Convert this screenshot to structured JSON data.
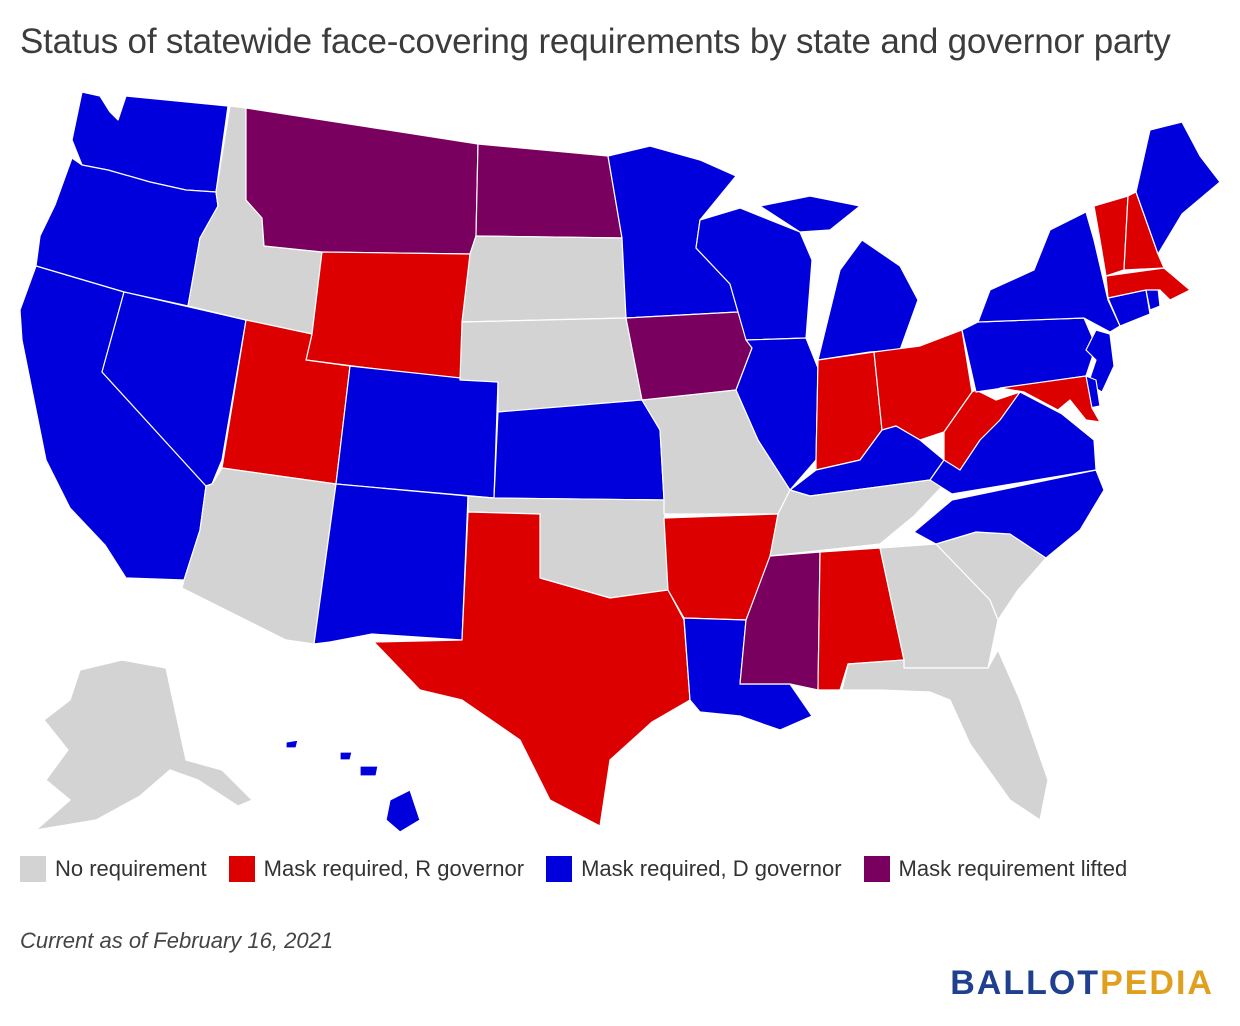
{
  "title": "Status of statewide face-covering requirements by state and governor party",
  "legend": [
    {
      "label": "No requirement",
      "color": "#d3d3d3"
    },
    {
      "label": "Mask required, R governor",
      "color": "#dd0000"
    },
    {
      "label": "Mask required, D governor",
      "color": "#0000dd"
    },
    {
      "label": "Mask requirement lifted",
      "color": "#7a0060"
    }
  ],
  "footnote": "Current as of February 16, 2021",
  "brand": {
    "part1": "BALLOT",
    "part2": "PEDIA"
  },
  "states": {
    "WA": "Mask required, D governor",
    "OR": "Mask required, D governor",
    "CA": "Mask required, D governor",
    "NV": "Mask required, D governor",
    "ID": "No requirement",
    "MT": "Mask requirement lifted",
    "WY": "Mask required, R governor",
    "UT": "Mask required, R governor",
    "AZ": "No requirement",
    "CO": "Mask required, D governor",
    "NM": "Mask required, D governor",
    "ND": "Mask requirement lifted",
    "SD": "No requirement",
    "NE": "No requirement",
    "KS": "Mask required, D governor",
    "OK": "No requirement",
    "TX": "Mask required, R governor",
    "MN": "Mask required, D governor",
    "IA": "Mask requirement lifted",
    "MO": "No requirement",
    "AR": "Mask required, R governor",
    "LA": "Mask required, D governor",
    "WI": "Mask required, D governor",
    "IL": "Mask required, D governor",
    "MS": "Mask requirement lifted",
    "MI": "Mask required, D governor",
    "IN": "Mask required, R governor",
    "KY": "Mask required, D governor",
    "TN": "No requirement",
    "AL": "Mask required, R governor",
    "OH": "Mask required, R governor",
    "WV": "Mask required, R governor",
    "VA": "Mask required, D governor",
    "NC": "Mask required, D governor",
    "SC": "No requirement",
    "GA": "No requirement",
    "FL": "No requirement",
    "PA": "Mask required, D governor",
    "NY": "Mask required, D governor",
    "NJ": "Mask required, D governor",
    "DE": "Mask required, D governor",
    "MD": "Mask required, R governor",
    "CT": "Mask required, D governor",
    "RI": "Mask required, D governor",
    "MA": "Mask required, R governor",
    "VT": "Mask required, R governor",
    "NH": "Mask required, R governor",
    "ME": "Mask required, D governor",
    "AK": "No requirement",
    "HI": "Mask required, D governor"
  }
}
